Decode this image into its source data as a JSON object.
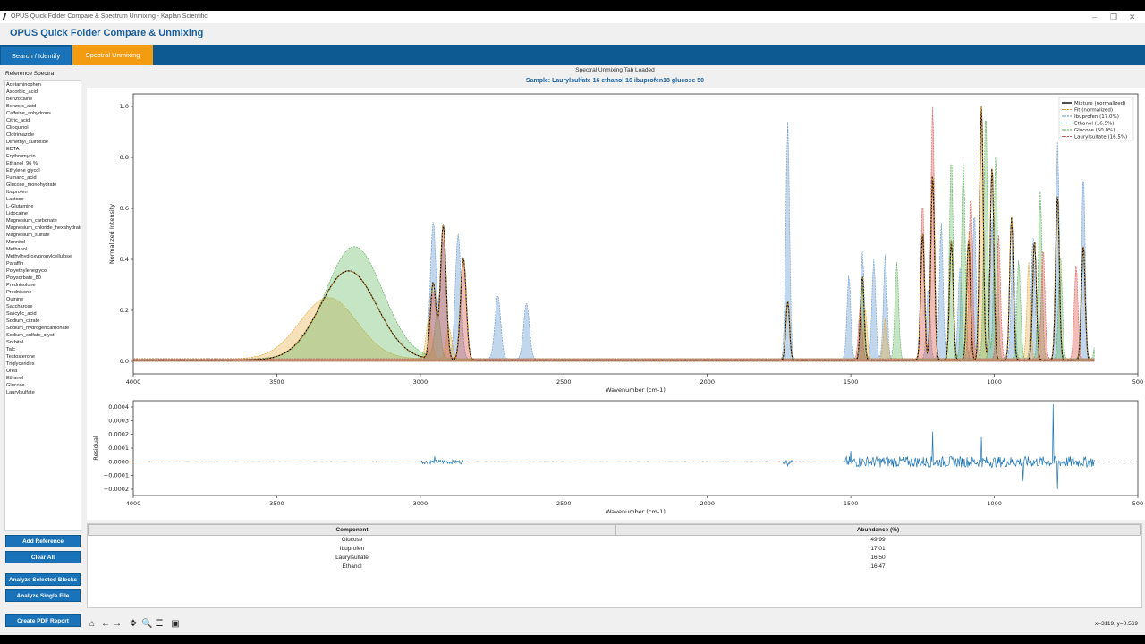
{
  "window": {
    "title": "OPUS Quick Folder Compare & Spectrum Unmixing - Kaplan Scientific",
    "min": "–",
    "max": "❐",
    "close": "✕"
  },
  "app": {
    "heading": "OPUS Quick Folder Compare & Unmixing"
  },
  "tabs": [
    {
      "label": "Search / Identify"
    },
    {
      "label": "Spectral Unmixing",
      "active": true
    }
  ],
  "sidebar": {
    "label": "Reference Spectra",
    "items": [
      "Acetaminophen",
      "Ascorbic_acid",
      "Benzocaine",
      "Benzoic_acid",
      "Caffeine_anhydrous",
      "Citric_acid",
      "Clioquinol",
      "Clotrimazole",
      "Dimethyl_sulfoxide",
      "EDTA",
      "Erythromycin",
      "Ethanol_96 %",
      "Ethylene glycol",
      "Fumaric_acid",
      "Glucose_monohydrate",
      "Ibuprofen",
      "Lactose",
      "L-Glutamine",
      "Lidocaine",
      "Magnesium_carbonate",
      "Magnesium_chloride_hexahydrate",
      "Magnesium_sulfate",
      "Mannitol",
      "Methanol",
      "Methylhydroxypropylcellulose",
      "Paraffin",
      "Polyethyleneglycol",
      "Polysorbate_80",
      "Prednisolone",
      "Prednisone",
      "Quinine",
      "Saccharose",
      "Salicylic_acid",
      "Sodium_citrate",
      "Sodium_hydrogencarbonate",
      "Sodium_sulfate_cryst",
      "Sorbitol",
      "Talc",
      "Testosterone",
      "Triglycerides",
      "Urea",
      "Ethanol",
      "Glucose",
      "Laurylsulfate"
    ],
    "buttons": {
      "add_reference": "Add Reference",
      "clear_all": "Clear All",
      "analyze_selected": "Analyze Selected Blocks",
      "analyze_single": "Analyze Single File",
      "create_pdf": "Create PDF Report"
    }
  },
  "main": {
    "status": "Spectral Unmixing Tab Loaded",
    "sample_title": "Sample: Laurylsulfate 16 ethanol 16 ibuprofen18 glucose 50"
  },
  "chart_data": [
    {
      "type": "area",
      "xlabel": "Wavenumber (cm-1)",
      "ylabel": "Normalized Intensity",
      "xlim": [
        4000,
        500
      ],
      "x_reversed": true,
      "ylim": [
        0.0,
        1.0
      ],
      "xticks": [
        4000,
        3500,
        3000,
        2500,
        2000,
        1500,
        1000,
        500
      ],
      "yticks": [
        "0.0",
        "0.2",
        "0.4",
        "0.6",
        "0.8",
        "1.0"
      ],
      "legend_position": "top-right",
      "series": [
        {
          "name": "Mixture (normalized)",
          "color": "#000000",
          "style": "solid-line"
        },
        {
          "name": "Fit (normalized)",
          "color": "#e8a020",
          "style": "dashed-line"
        },
        {
          "name": "Ibuprofen (17.0%)",
          "color": "#6699cc",
          "style": "filled-dashed",
          "peaks": [
            [
              2955,
              0.54
            ],
            [
              2920,
              0.46
            ],
            [
              2868,
              0.49
            ],
            [
              2730,
              0.25
            ],
            [
              2630,
              0.22
            ],
            [
              1720,
              0.93
            ],
            [
              1507,
              0.33
            ],
            [
              1460,
              0.42
            ],
            [
              1420,
              0.39
            ],
            [
              1380,
              0.41
            ],
            [
              1230,
              0.28
            ],
            [
              1185,
              0.54
            ],
            [
              1120,
              0.36
            ],
            [
              1070,
              0.58
            ],
            [
              1008,
              0.55
            ],
            [
              935,
              0.46
            ],
            [
              865,
              0.48
            ],
            [
              780,
              0.85
            ],
            [
              690,
              0.73
            ]
          ]
        },
        {
          "name": "Ethanol (16.5%)",
          "color": "#e8a020",
          "style": "filled-dashed",
          "peaks": [
            [
              3320,
              0.24
            ],
            [
              2970,
              0.16
            ],
            [
              2900,
              0.12
            ],
            [
              1450,
              0.2
            ],
            [
              1380,
              0.16
            ],
            [
              1088,
              0.5
            ],
            [
              1045,
              0.99
            ],
            [
              880,
              0.38
            ]
          ]
        },
        {
          "name": "Glucose (50.0%)",
          "color": "#55aa55",
          "style": "filled-dashed",
          "peaks": [
            [
              3230,
              0.44
            ],
            [
              2940,
              0.18
            ],
            [
              1460,
              0.28
            ],
            [
              1340,
              0.38
            ],
            [
              1150,
              0.8
            ],
            [
              1108,
              0.77
            ],
            [
              1030,
              0.98
            ],
            [
              995,
              0.8
            ],
            [
              915,
              0.39
            ],
            [
              840,
              0.66
            ],
            [
              770,
              0.41
            ],
            [
              640,
              0.26
            ]
          ]
        },
        {
          "name": "Laurylsulfate (16.5%)",
          "color": "#dd5555",
          "style": "filled-dashed",
          "peaks": [
            [
              2955,
              0.26
            ],
            [
              2920,
              0.53
            ],
            [
              2850,
              0.4
            ],
            [
              1467,
              0.21
            ],
            [
              1250,
              0.62
            ],
            [
              1215,
              1.0
            ],
            [
              1082,
              0.65
            ],
            [
              985,
              0.49
            ],
            [
              830,
              0.44
            ],
            [
              715,
              0.37
            ]
          ]
        }
      ],
      "mixture_peaks": [
        [
          3250,
          0.35
        ],
        [
          2955,
          0.3
        ],
        [
          2920,
          0.53
        ],
        [
          2850,
          0.4
        ],
        [
          1720,
          0.23
        ],
        [
          1460,
          0.33
        ],
        [
          1250,
          0.5
        ],
        [
          1215,
          0.73
        ],
        [
          1150,
          0.47
        ],
        [
          1090,
          0.47
        ],
        [
          1045,
          1.0
        ],
        [
          1008,
          0.76
        ],
        [
          940,
          0.56
        ],
        [
          860,
          0.47
        ],
        [
          780,
          0.65
        ],
        [
          690,
          0.45
        ]
      ]
    },
    {
      "type": "line",
      "xlabel": "Wavenumber (cm-1)",
      "ylabel": "Residual",
      "xlim": [
        4000,
        500
      ],
      "x_reversed": true,
      "ylim": [
        -0.0002,
        0.0004
      ],
      "xticks": [
        4000,
        3500,
        3000,
        2500,
        2000,
        1500,
        1000,
        500
      ],
      "yticks": [
        "0.0004",
        "0.0003",
        "0.0002",
        "0.0001",
        "0.0000",
        "−0.0001",
        "−0.0002"
      ],
      "baseline": 0.0,
      "notable_points": [
        [
          2950,
          4e-05
        ],
        [
          1720,
          -3e-05
        ],
        [
          1500,
          8e-05
        ],
        [
          1215,
          0.00022
        ],
        [
          1045,
          0.00018
        ],
        [
          900,
          -0.00014
        ],
        [
          795,
          0.00042
        ],
        [
          780,
          -0.0002
        ]
      ]
    }
  ],
  "results_table": {
    "headers": [
      "Component",
      "Abundance (%)"
    ],
    "rows": [
      [
        "Glucose",
        "49.99"
      ],
      [
        "Ibuprofen",
        "17.01"
      ],
      [
        "Laurylsulfate",
        "16.50"
      ],
      [
        "Ethanol",
        "16.47"
      ]
    ]
  },
  "toolbar": {
    "icons": [
      "home-icon",
      "back-icon",
      "forward-icon",
      "pan-icon",
      "zoom-icon",
      "configure-icon",
      "save-icon"
    ],
    "glyphs": [
      "⌂",
      "←",
      "→",
      "✥",
      "🔍",
      "☰",
      "▣"
    ]
  },
  "coordinates": "x=3119, y=0.569"
}
